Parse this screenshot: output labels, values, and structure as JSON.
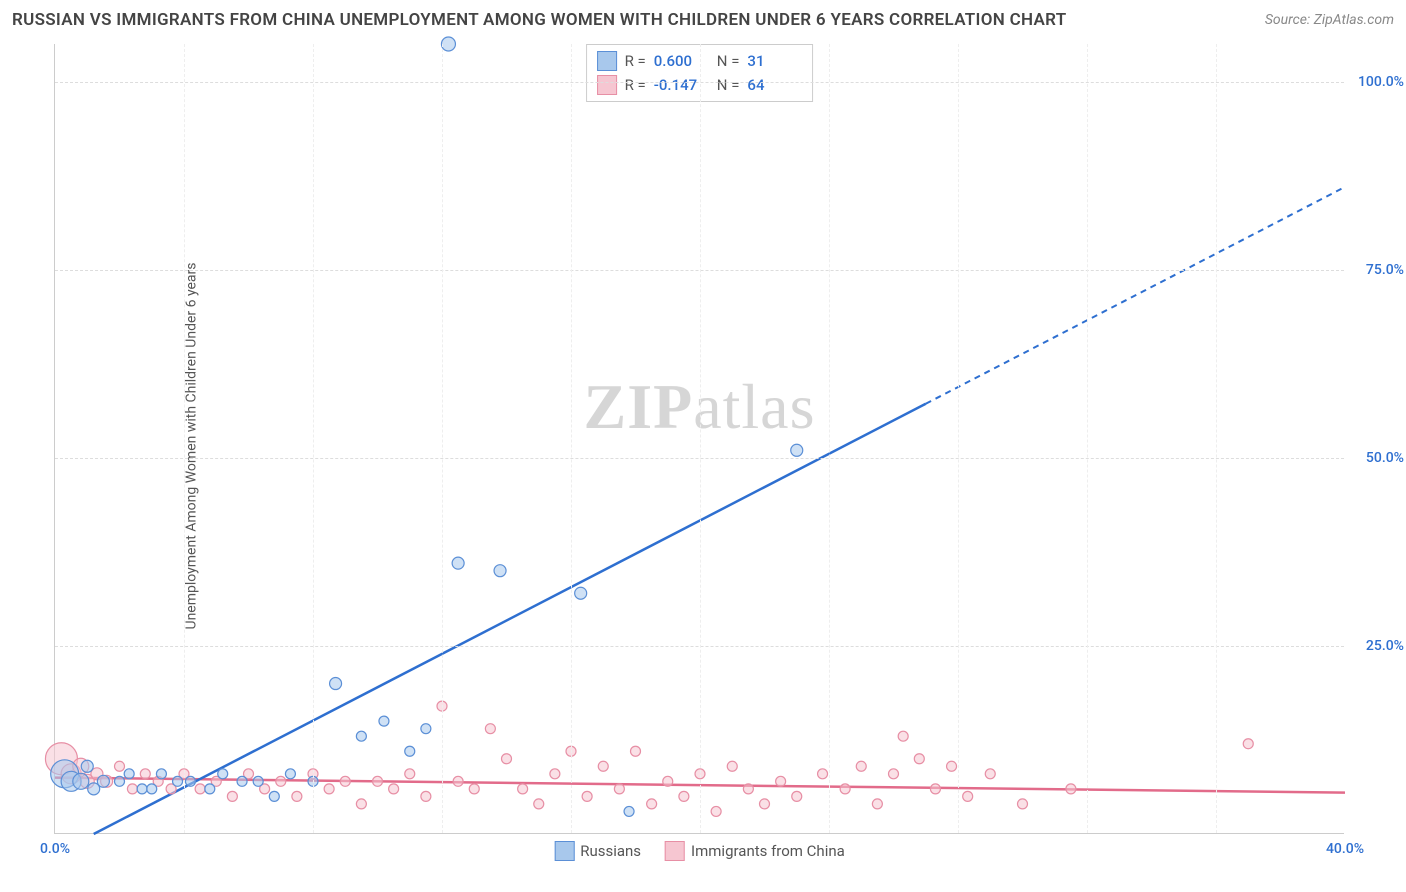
{
  "header": {
    "title": "RUSSIAN VS IMMIGRANTS FROM CHINA UNEMPLOYMENT AMONG WOMEN WITH CHILDREN UNDER 6 YEARS CORRELATION CHART",
    "source": "Source: ZipAtlas.com"
  },
  "ylabel": "Unemployment Among Women with Children Under 6 years",
  "watermark": {
    "bold": "ZIP",
    "light": "atlas"
  },
  "colors": {
    "blue_fill": "#a8c8ec",
    "blue_stroke": "#5b8fd6",
    "blue_line": "#2e6fd0",
    "pink_fill": "#f6c6d1",
    "pink_stroke": "#e78fa5",
    "pink_line": "#e26b8a",
    "axis_text_blue": "#2e6fd0",
    "grid": "#dddddd"
  },
  "axes": {
    "xlim": [
      0,
      40
    ],
    "ylim": [
      0,
      105
    ],
    "xticks": [
      {
        "v": 0,
        "label": "0.0%"
      },
      {
        "v": 40,
        "label": "40.0%"
      }
    ],
    "xgrid": [
      4,
      8,
      12,
      16,
      20,
      24,
      28,
      32,
      36
    ],
    "yticks": [
      {
        "v": 25,
        "label": "25.0%"
      },
      {
        "v": 50,
        "label": "50.0%"
      },
      {
        "v": 75,
        "label": "75.0%"
      },
      {
        "v": 100,
        "label": "100.0%"
      }
    ]
  },
  "stats": [
    {
      "series": "blue",
      "R": "0.600",
      "N": "31"
    },
    {
      "series": "pink",
      "R": "-0.147",
      "N": "64"
    }
  ],
  "bottom_legend": [
    {
      "series": "blue",
      "label": "Russians"
    },
    {
      "series": "pink",
      "label": "Immigrants from China"
    }
  ],
  "series": {
    "blue": {
      "trend": {
        "x1": 1.2,
        "y1": 0,
        "x2": 40,
        "y2": 86,
        "solid_until_x": 27
      },
      "points": [
        {
          "x": 0.3,
          "y": 8,
          "r": 14
        },
        {
          "x": 0.5,
          "y": 7,
          "r": 10
        },
        {
          "x": 0.8,
          "y": 7,
          "r": 8
        },
        {
          "x": 1.0,
          "y": 9,
          "r": 6
        },
        {
          "x": 1.2,
          "y": 6,
          "r": 6
        },
        {
          "x": 1.5,
          "y": 7,
          "r": 6
        },
        {
          "x": 2.0,
          "y": 7,
          "r": 5
        },
        {
          "x": 2.3,
          "y": 8,
          "r": 5
        },
        {
          "x": 2.7,
          "y": 6,
          "r": 5
        },
        {
          "x": 3.0,
          "y": 6,
          "r": 5
        },
        {
          "x": 3.3,
          "y": 8,
          "r": 5
        },
        {
          "x": 3.8,
          "y": 7,
          "r": 5
        },
        {
          "x": 4.2,
          "y": 7,
          "r": 5
        },
        {
          "x": 4.8,
          "y": 6,
          "r": 5
        },
        {
          "x": 5.2,
          "y": 8,
          "r": 5
        },
        {
          "x": 5.8,
          "y": 7,
          "r": 5
        },
        {
          "x": 6.3,
          "y": 7,
          "r": 5
        },
        {
          "x": 6.8,
          "y": 5,
          "r": 5
        },
        {
          "x": 7.3,
          "y": 8,
          "r": 5
        },
        {
          "x": 8.0,
          "y": 7,
          "r": 5
        },
        {
          "x": 8.7,
          "y": 20,
          "r": 6
        },
        {
          "x": 9.5,
          "y": 13,
          "r": 5
        },
        {
          "x": 10.2,
          "y": 15,
          "r": 5
        },
        {
          "x": 11.0,
          "y": 11,
          "r": 5
        },
        {
          "x": 11.5,
          "y": 14,
          "r": 5
        },
        {
          "x": 12.5,
          "y": 36,
          "r": 6
        },
        {
          "x": 13.8,
          "y": 35,
          "r": 6
        },
        {
          "x": 16.3,
          "y": 32,
          "r": 6
        },
        {
          "x": 17.8,
          "y": 3,
          "r": 5
        },
        {
          "x": 23.0,
          "y": 51,
          "r": 6
        },
        {
          "x": 12.2,
          "y": 105,
          "r": 7
        }
      ]
    },
    "pink": {
      "trend": {
        "x1": 0,
        "y1": 7.5,
        "x2": 40,
        "y2": 5.5,
        "solid_until_x": 40
      },
      "points": [
        {
          "x": 0.2,
          "y": 10,
          "r": 16
        },
        {
          "x": 0.5,
          "y": 8,
          "r": 10
        },
        {
          "x": 0.8,
          "y": 9,
          "r": 8
        },
        {
          "x": 1.0,
          "y": 7,
          "r": 7
        },
        {
          "x": 1.3,
          "y": 8,
          "r": 6
        },
        {
          "x": 1.6,
          "y": 7,
          "r": 6
        },
        {
          "x": 2.0,
          "y": 9,
          "r": 5
        },
        {
          "x": 2.4,
          "y": 6,
          "r": 5
        },
        {
          "x": 2.8,
          "y": 8,
          "r": 5
        },
        {
          "x": 3.2,
          "y": 7,
          "r": 5
        },
        {
          "x": 3.6,
          "y": 6,
          "r": 5
        },
        {
          "x": 4.0,
          "y": 8,
          "r": 5
        },
        {
          "x": 4.5,
          "y": 6,
          "r": 5
        },
        {
          "x": 5.0,
          "y": 7,
          "r": 5
        },
        {
          "x": 5.5,
          "y": 5,
          "r": 5
        },
        {
          "x": 6.0,
          "y": 8,
          "r": 5
        },
        {
          "x": 6.5,
          "y": 6,
          "r": 5
        },
        {
          "x": 7.0,
          "y": 7,
          "r": 5
        },
        {
          "x": 7.5,
          "y": 5,
          "r": 5
        },
        {
          "x": 8.0,
          "y": 8,
          "r": 5
        },
        {
          "x": 8.5,
          "y": 6,
          "r": 5
        },
        {
          "x": 9.0,
          "y": 7,
          "r": 5
        },
        {
          "x": 9.5,
          "y": 4,
          "r": 5
        },
        {
          "x": 10.0,
          "y": 7,
          "r": 5
        },
        {
          "x": 10.5,
          "y": 6,
          "r": 5
        },
        {
          "x": 11.0,
          "y": 8,
          "r": 5
        },
        {
          "x": 11.5,
          "y": 5,
          "r": 5
        },
        {
          "x": 12.0,
          "y": 17,
          "r": 5
        },
        {
          "x": 12.5,
          "y": 7,
          "r": 5
        },
        {
          "x": 13.0,
          "y": 6,
          "r": 5
        },
        {
          "x": 13.5,
          "y": 14,
          "r": 5
        },
        {
          "x": 14.0,
          "y": 10,
          "r": 5
        },
        {
          "x": 14.5,
          "y": 6,
          "r": 5
        },
        {
          "x": 15.0,
          "y": 4,
          "r": 5
        },
        {
          "x": 15.5,
          "y": 8,
          "r": 5
        },
        {
          "x": 16.0,
          "y": 11,
          "r": 5
        },
        {
          "x": 16.5,
          "y": 5,
          "r": 5
        },
        {
          "x": 17.0,
          "y": 9,
          "r": 5
        },
        {
          "x": 17.5,
          "y": 6,
          "r": 5
        },
        {
          "x": 18.0,
          "y": 11,
          "r": 5
        },
        {
          "x": 18.5,
          "y": 4,
          "r": 5
        },
        {
          "x": 19.0,
          "y": 7,
          "r": 5
        },
        {
          "x": 19.5,
          "y": 5,
          "r": 5
        },
        {
          "x": 20.0,
          "y": 8,
          "r": 5
        },
        {
          "x": 20.5,
          "y": 3,
          "r": 5
        },
        {
          "x": 21.0,
          "y": 9,
          "r": 5
        },
        {
          "x": 21.5,
          "y": 6,
          "r": 5
        },
        {
          "x": 22.0,
          "y": 4,
          "r": 5
        },
        {
          "x": 22.5,
          "y": 7,
          "r": 5
        },
        {
          "x": 23.0,
          "y": 5,
          "r": 5
        },
        {
          "x": 23.8,
          "y": 8,
          "r": 5
        },
        {
          "x": 24.5,
          "y": 6,
          "r": 5
        },
        {
          "x": 25.0,
          "y": 9,
          "r": 5
        },
        {
          "x": 25.5,
          "y": 4,
          "r": 5
        },
        {
          "x": 26.0,
          "y": 8,
          "r": 5
        },
        {
          "x": 26.3,
          "y": 13,
          "r": 5
        },
        {
          "x": 26.8,
          "y": 10,
          "r": 5
        },
        {
          "x": 27.3,
          "y": 6,
          "r": 5
        },
        {
          "x": 27.8,
          "y": 9,
          "r": 5
        },
        {
          "x": 28.3,
          "y": 5,
          "r": 5
        },
        {
          "x": 29.0,
          "y": 8,
          "r": 5
        },
        {
          "x": 30.0,
          "y": 4,
          "r": 5
        },
        {
          "x": 31.5,
          "y": 6,
          "r": 5
        },
        {
          "x": 37.0,
          "y": 12,
          "r": 5
        }
      ]
    }
  }
}
